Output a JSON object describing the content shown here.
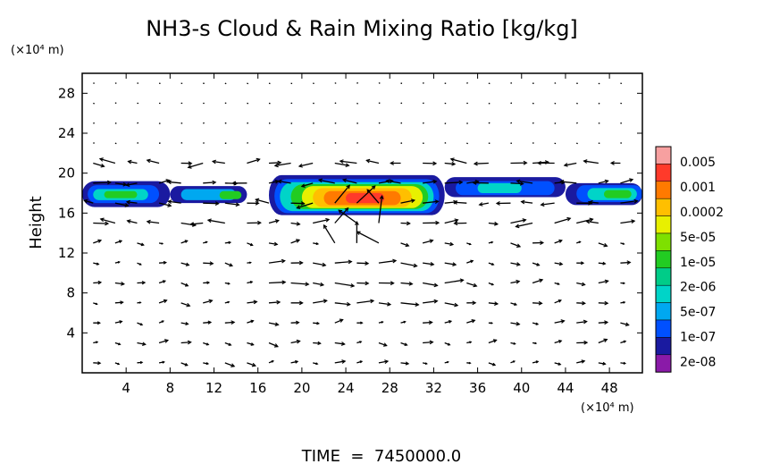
{
  "chart_data": {
    "type": "heatmap",
    "title": "NH3-s Cloud & Rain Mixing Ratio [kg/kg]",
    "ylabel": "Height",
    "y_unit": "(×10⁴ m)",
    "x_unit": "(×10⁴ m)",
    "footer": "TIME  =  7450000.0",
    "xlim": [
      0,
      51
    ],
    "ylim": [
      0,
      30
    ],
    "xticks": [
      4,
      8,
      12,
      16,
      20,
      24,
      28,
      32,
      36,
      40,
      44,
      48
    ],
    "yticks": [
      4,
      8,
      12,
      16,
      20,
      24,
      28
    ],
    "xtick_labels": [
      "4",
      "8",
      "12",
      "16",
      "20",
      "24",
      "28",
      "32",
      "36",
      "40",
      "44",
      "48"
    ],
    "ytick_labels": [
      "4",
      "8",
      "12",
      "16",
      "20",
      "24",
      "28"
    ],
    "colorbar": {
      "labels": [
        "0.005",
        "0.001",
        "0.0002",
        "5e-05",
        "1e-05",
        "2e-06",
        "5e-07",
        "1e-07",
        "2e-08"
      ],
      "colors_top_to_bottom": [
        "#f7a0a0",
        "#ff3a2a",
        "#ff7a00",
        "#ffbf00",
        "#e8f000",
        "#7ee000",
        "#22cc22",
        "#00cc88",
        "#00d4c8",
        "#00a8f0",
        "#0050ff",
        "#1a1aa0",
        "#8a1aa8"
      ]
    },
    "cloud_layer": {
      "height_range": [
        16,
        20
      ],
      "x_range": [
        0,
        51
      ],
      "peak_region_x": [
        19,
        32
      ],
      "peak_value": 0.001
    },
    "vector_field": {
      "description_hidden": true,
      "x_spacing": 2,
      "y_spacing": 2
    },
    "grid": false,
    "legend_position": "right"
  }
}
